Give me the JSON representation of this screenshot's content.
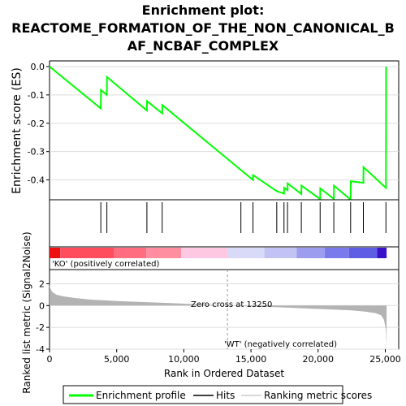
{
  "title_lines": [
    "Enrichment plot:",
    "REACTOME_FORMATION_OF_THE_NON_CANONICAL_B",
    "AF_NCBAF_COMPLEX"
  ],
  "colors": {
    "enrichment_line": "#00ff00",
    "hits": "#000000",
    "positive_label": "#dd0000",
    "negative_label": "#0000cc",
    "metric_fill": "#b3b3b3",
    "zero_cross_line": "#999999"
  },
  "chart_data": [
    {
      "type": "line",
      "ylabel": "Enrichment score (ES)",
      "xlim": [
        0,
        26000
      ],
      "ylim": [
        -0.47,
        0.02
      ],
      "yticks": [
        0.0,
        -0.1,
        -0.2,
        -0.3,
        -0.4
      ],
      "ytick_labels": [
        "0.0",
        "-0.1",
        "-0.2",
        "-0.3",
        "-0.4"
      ],
      "grid": true,
      "series": [
        {
          "name": "Enrichment profile",
          "x": [
            0,
            3820,
            3830,
            4270,
            4280,
            7250,
            7260,
            8390,
            8400,
            14250,
            15150,
            15160,
            16920,
            17460,
            17470,
            17720,
            17730,
            18750,
            18760,
            20150,
            20160,
            21170,
            21180,
            22420,
            22430,
            23370,
            23380,
            25050,
            25060
          ],
          "y": [
            0.0,
            -0.148,
            -0.083,
            -0.1,
            -0.037,
            -0.155,
            -0.122,
            -0.165,
            -0.136,
            -0.365,
            -0.4,
            -0.383,
            -0.44,
            -0.448,
            -0.428,
            -0.436,
            -0.412,
            -0.45,
            -0.42,
            -0.468,
            -0.43,
            -0.467,
            -0.42,
            -0.47,
            -0.405,
            -0.41,
            -0.355,
            -0.428,
            0.0
          ]
        }
      ]
    },
    {
      "type": "hits",
      "xlim": [
        0,
        26000
      ],
      "hits": [
        3820,
        4270,
        7250,
        8390,
        14250,
        15150,
        16920,
        17460,
        17720,
        18750,
        20150,
        21170,
        22420,
        23370,
        25050
      ]
    },
    {
      "type": "heatmap",
      "xlim": [
        0,
        26000
      ],
      "bands": [
        {
          "start": 0,
          "end": 800,
          "color": "#ee1111"
        },
        {
          "start": 800,
          "end": 4800,
          "color": "#ff4d5e"
        },
        {
          "start": 4800,
          "end": 7200,
          "color": "#ff6e80"
        },
        {
          "start": 7200,
          "end": 9800,
          "color": "#ff8fa0"
        },
        {
          "start": 9800,
          "end": 13250,
          "color": "#ffc8e2"
        },
        {
          "start": 13250,
          "end": 16000,
          "color": "#d9d9f8"
        },
        {
          "start": 16000,
          "end": 18400,
          "color": "#c2c2f5"
        },
        {
          "start": 18400,
          "end": 20500,
          "color": "#9d9df0"
        },
        {
          "start": 20500,
          "end": 22300,
          "color": "#7a7aec"
        },
        {
          "start": 22300,
          "end": 24400,
          "color": "#5e5ee5"
        },
        {
          "start": 24400,
          "end": 25100,
          "color": "#3a10c8"
        }
      ]
    },
    {
      "type": "area",
      "xlabel": "Rank in Ordered Dataset",
      "ylabel": "Ranked list metric (Signal2Noise)",
      "xlim": [
        0,
        26000
      ],
      "ylim": [
        -4,
        3.3
      ],
      "xticks": [
        0,
        5000,
        10000,
        15000,
        20000,
        25000
      ],
      "xtick_labels": [
        "0",
        "5,000",
        "10,000",
        "15,000",
        "20,000",
        "25,000"
      ],
      "yticks": [
        2,
        0,
        -2,
        -4
      ],
      "ytick_labels": [
        "2",
        "0",
        "-2",
        "-4"
      ],
      "x": [
        0,
        50,
        200,
        500,
        1000,
        2000,
        3000,
        5000,
        7000,
        9000,
        11000,
        13250,
        15000,
        17000,
        19000,
        21000,
        22500,
        23500,
        24300,
        24700,
        24900,
        25050,
        25100
      ],
      "y": [
        2.0,
        1.6,
        1.25,
        1.0,
        0.85,
        0.68,
        0.55,
        0.42,
        0.32,
        0.22,
        0.12,
        0.0,
        -0.08,
        -0.16,
        -0.26,
        -0.36,
        -0.44,
        -0.55,
        -0.7,
        -0.9,
        -1.3,
        -2.2,
        -3.9
      ],
      "annotations": {
        "positive": "'KO' (positively correlated)",
        "negative": "'WT' (negatively correlated)",
        "zero_cross": "Zero cross at 13250",
        "zero_cross_x": 13250
      }
    }
  ],
  "legend": {
    "items": [
      {
        "label": "Enrichment profile",
        "color": "#00ff00",
        "kind": "thick-line"
      },
      {
        "label": "Hits",
        "color": "#000000",
        "kind": "thin-line"
      },
      {
        "label": "Ranking metric scores",
        "color": "#cccccc",
        "kind": "thin-line"
      }
    ]
  }
}
